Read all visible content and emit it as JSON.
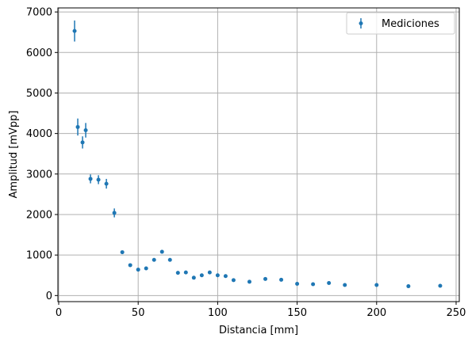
{
  "chart_data": {
    "type": "scatter",
    "xlabel": "Distancia [mm]",
    "ylabel": "Amplitud [mVpp]",
    "xlim": [
      -0.5,
      252
    ],
    "ylim": [
      -150,
      7100
    ],
    "xticks": [
      0,
      50,
      100,
      150,
      200,
      250
    ],
    "yticks": [
      0,
      1000,
      2000,
      3000,
      4000,
      5000,
      6000,
      7000
    ],
    "grid": true,
    "legend_position": "top-right",
    "color": "#1f77b4",
    "series": [
      {
        "name": "Mediciones",
        "x": [
          10,
          12,
          15,
          17,
          20,
          25,
          30,
          35,
          40,
          45,
          50,
          55,
          60,
          65,
          70,
          75,
          80,
          85,
          90,
          95,
          100,
          105,
          110,
          120,
          130,
          140,
          150,
          160,
          170,
          180,
          200,
          220,
          240
        ],
        "y": [
          6530,
          4160,
          3780,
          4080,
          2880,
          2860,
          2760,
          2040,
          1070,
          750,
          640,
          670,
          880,
          1080,
          880,
          560,
          570,
          440,
          500,
          570,
          500,
          480,
          380,
          340,
          410,
          390,
          290,
          280,
          310,
          260,
          260,
          230,
          240
        ],
        "yerr": [
          260,
          210,
          150,
          180,
          110,
          110,
          120,
          110,
          0,
          0,
          0,
          0,
          0,
          0,
          0,
          0,
          0,
          0,
          0,
          0,
          0,
          0,
          0,
          0,
          0,
          0,
          0,
          0,
          0,
          0,
          0,
          0,
          0
        ]
      }
    ]
  }
}
